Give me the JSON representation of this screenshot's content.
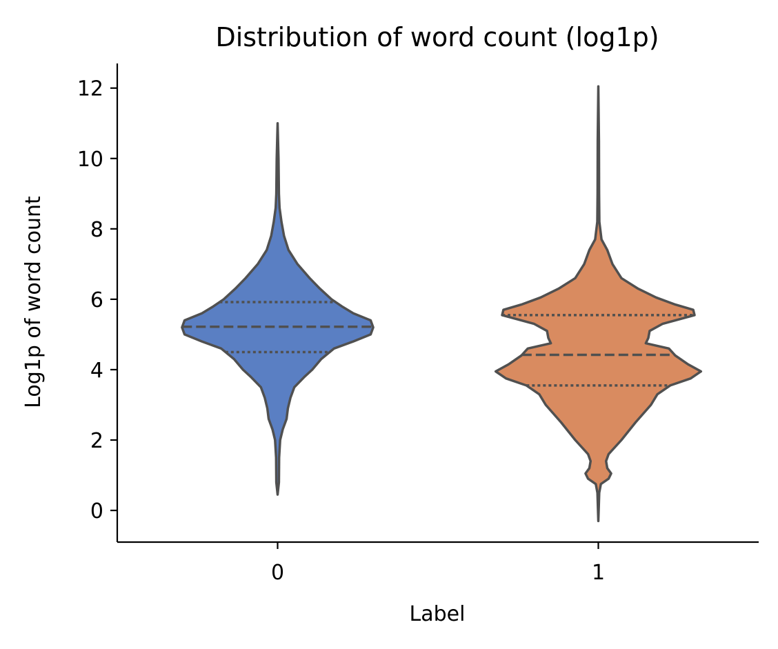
{
  "chart_data": {
    "type": "violin",
    "title": "Distribution of word count (log1p)",
    "xlabel": "Label",
    "ylabel": "Log1p of word count",
    "ylim": [
      -0.9,
      12.7
    ],
    "yticks": [
      0,
      2,
      4,
      6,
      8,
      10,
      12
    ],
    "categories": [
      "0",
      "1"
    ],
    "grid": false,
    "series": [
      {
        "category": "0",
        "color": "#5a7fc3",
        "min": 0.45,
        "max": 11.0,
        "q1": 4.5,
        "median": 5.22,
        "q3": 5.92,
        "density_profile": [
          [
            0.45,
            0.0
          ],
          [
            0.8,
            0.01
          ],
          [
            1.5,
            0.012
          ],
          [
            2.0,
            0.02
          ],
          [
            2.3,
            0.04
          ],
          [
            2.6,
            0.07
          ],
          [
            2.9,
            0.08
          ],
          [
            3.2,
            0.1
          ],
          [
            3.5,
            0.13
          ],
          [
            3.8,
            0.21
          ],
          [
            4.0,
            0.27
          ],
          [
            4.3,
            0.34
          ],
          [
            4.6,
            0.44
          ],
          [
            4.8,
            0.59
          ],
          [
            5.0,
            0.725
          ],
          [
            5.2,
            0.745
          ],
          [
            5.4,
            0.725
          ],
          [
            5.6,
            0.59
          ],
          [
            5.8,
            0.5
          ],
          [
            6.0,
            0.42
          ],
          [
            6.3,
            0.33
          ],
          [
            6.6,
            0.25
          ],
          [
            7.0,
            0.155
          ],
          [
            7.4,
            0.085
          ],
          [
            7.8,
            0.05
          ],
          [
            8.2,
            0.03
          ],
          [
            8.6,
            0.015
          ],
          [
            9.0,
            0.01
          ],
          [
            10.0,
            0.007
          ],
          [
            11.0,
            0.0
          ]
        ]
      },
      {
        "category": "1",
        "color": "#d98b60",
        "min": -0.3,
        "max": 12.05,
        "q1": 3.55,
        "median": 4.42,
        "q3": 5.55,
        "density_profile": [
          [
            -0.3,
            0.0
          ],
          [
            0.5,
            0.007
          ],
          [
            0.75,
            0.02
          ],
          [
            0.9,
            0.08
          ],
          [
            1.05,
            0.1
          ],
          [
            1.2,
            0.07
          ],
          [
            1.4,
            0.06
          ],
          [
            1.6,
            0.08
          ],
          [
            2.0,
            0.18
          ],
          [
            2.5,
            0.29
          ],
          [
            3.0,
            0.41
          ],
          [
            3.3,
            0.46
          ],
          [
            3.55,
            0.56
          ],
          [
            3.75,
            0.72
          ],
          [
            3.95,
            0.8
          ],
          [
            4.15,
            0.7
          ],
          [
            4.4,
            0.6
          ],
          [
            4.6,
            0.55
          ],
          [
            4.75,
            0.37
          ],
          [
            4.9,
            0.39
          ],
          [
            5.1,
            0.4
          ],
          [
            5.3,
            0.5
          ],
          [
            5.55,
            0.75
          ],
          [
            5.7,
            0.74
          ],
          [
            5.85,
            0.6
          ],
          [
            6.05,
            0.45
          ],
          [
            6.3,
            0.31
          ],
          [
            6.6,
            0.18
          ],
          [
            7.0,
            0.11
          ],
          [
            7.4,
            0.07
          ],
          [
            7.7,
            0.025
          ],
          [
            8.2,
            0.008
          ],
          [
            9.0,
            0.006
          ],
          [
            10.5,
            0.005
          ],
          [
            12.05,
            0.0
          ]
        ]
      }
    ]
  }
}
